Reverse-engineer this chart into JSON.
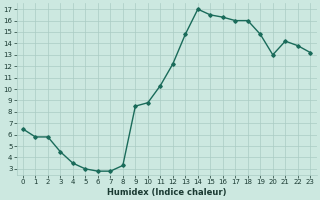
{
  "x": [
    0,
    1,
    2,
    3,
    4,
    5,
    6,
    7,
    8,
    9,
    10,
    11,
    12,
    13,
    14,
    15,
    16,
    17,
    18,
    19,
    20,
    21,
    22,
    23
  ],
  "y": [
    6.5,
    5.8,
    5.8,
    4.5,
    3.5,
    3.0,
    2.8,
    2.8,
    3.3,
    8.5,
    8.8,
    10.3,
    12.2,
    14.8,
    17.0,
    16.5,
    16.3,
    16.0,
    16.0,
    14.8,
    13.0,
    14.2,
    13.8,
    13.2
  ],
  "title": "",
  "xlabel": "Humidex (Indice chaleur)",
  "ylabel": "",
  "ylim": [
    2.5,
    17.5
  ],
  "xlim": [
    -0.5,
    23.5
  ],
  "yticks": [
    3,
    4,
    5,
    6,
    7,
    8,
    9,
    10,
    11,
    12,
    13,
    14,
    15,
    16,
    17
  ],
  "xticks": [
    0,
    1,
    2,
    3,
    4,
    5,
    6,
    7,
    8,
    9,
    10,
    11,
    12,
    13,
    14,
    15,
    16,
    17,
    18,
    19,
    20,
    21,
    22,
    23
  ],
  "line_color": "#1a6b5a",
  "bg_color": "#cce8e0",
  "grid_color": "#aaccc4",
  "marker": "D",
  "marker_size": 1.8,
  "line_width": 1.0,
  "tick_fontsize": 5.0,
  "xlabel_fontsize": 6.0
}
